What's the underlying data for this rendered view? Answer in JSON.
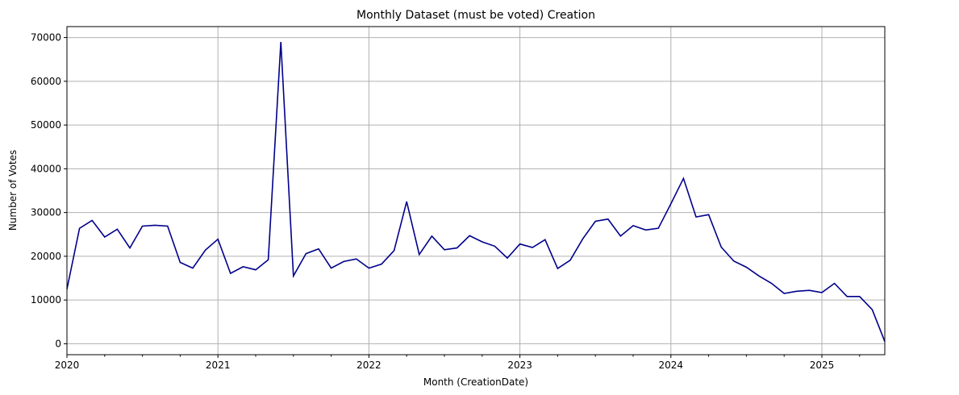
{
  "chart_data": {
    "type": "line",
    "title": "Monthly Dataset (must be voted) Creation",
    "xlabel": "Month (CreationDate)",
    "ylabel": "Number of Votes",
    "grid": true,
    "line_color": "#00008b",
    "xlim": [
      "2020-01",
      "2025-06"
    ],
    "ylim": [
      -2500,
      72500
    ],
    "x_ticks": [
      "2020",
      "2021",
      "2022",
      "2023",
      "2024",
      "2025"
    ],
    "y_ticks": [
      0,
      10000,
      20000,
      30000,
      40000,
      50000,
      60000,
      70000
    ],
    "series": [
      {
        "x": [
          "2020-01",
          "2020-02",
          "2020-03",
          "2020-04",
          "2020-05",
          "2020-06",
          "2020-07",
          "2020-08",
          "2020-09",
          "2020-10",
          "2020-11",
          "2020-12",
          "2021-01",
          "2021-02",
          "2021-03",
          "2021-04",
          "2021-05",
          "2021-06",
          "2021-07",
          "2021-08",
          "2021-09",
          "2021-10",
          "2021-11",
          "2021-12",
          "2022-01",
          "2022-02",
          "2022-03",
          "2022-04",
          "2022-05",
          "2022-06",
          "2022-07",
          "2022-08",
          "2022-09",
          "2022-10",
          "2022-11",
          "2022-12",
          "2023-01",
          "2023-02",
          "2023-03",
          "2023-04",
          "2023-05",
          "2023-06",
          "2023-07",
          "2023-08",
          "2023-09",
          "2023-10",
          "2023-11",
          "2023-12",
          "2024-01",
          "2024-02",
          "2024-03",
          "2024-04",
          "2024-05",
          "2024-06",
          "2024-07",
          "2024-08",
          "2024-09",
          "2024-10",
          "2024-11",
          "2024-12",
          "2025-01",
          "2025-02",
          "2025-03",
          "2025-04",
          "2025-05",
          "2025-06"
        ],
        "values": [
          12500,
          26400,
          28200,
          24400,
          26200,
          21900,
          26900,
          27100,
          26900,
          18600,
          17300,
          21400,
          23900,
          16100,
          17600,
          16900,
          19200,
          69000,
          15500,
          20600,
          21700,
          17300,
          18800,
          19400,
          17300,
          18200,
          21300,
          32500,
          20400,
          24600,
          21500,
          21900,
          24700,
          23300,
          22300,
          19600,
          22800,
          22000,
          23800,
          17200,
          19100,
          24000,
          28000,
          28500,
          24600,
          27000,
          26000,
          26400,
          32000,
          37800,
          29000,
          29500,
          22100,
          18900,
          17500,
          15500,
          13800,
          11500,
          12000,
          12200,
          11700,
          13800,
          10800,
          10800,
          7800,
          500
        ]
      }
    ]
  }
}
